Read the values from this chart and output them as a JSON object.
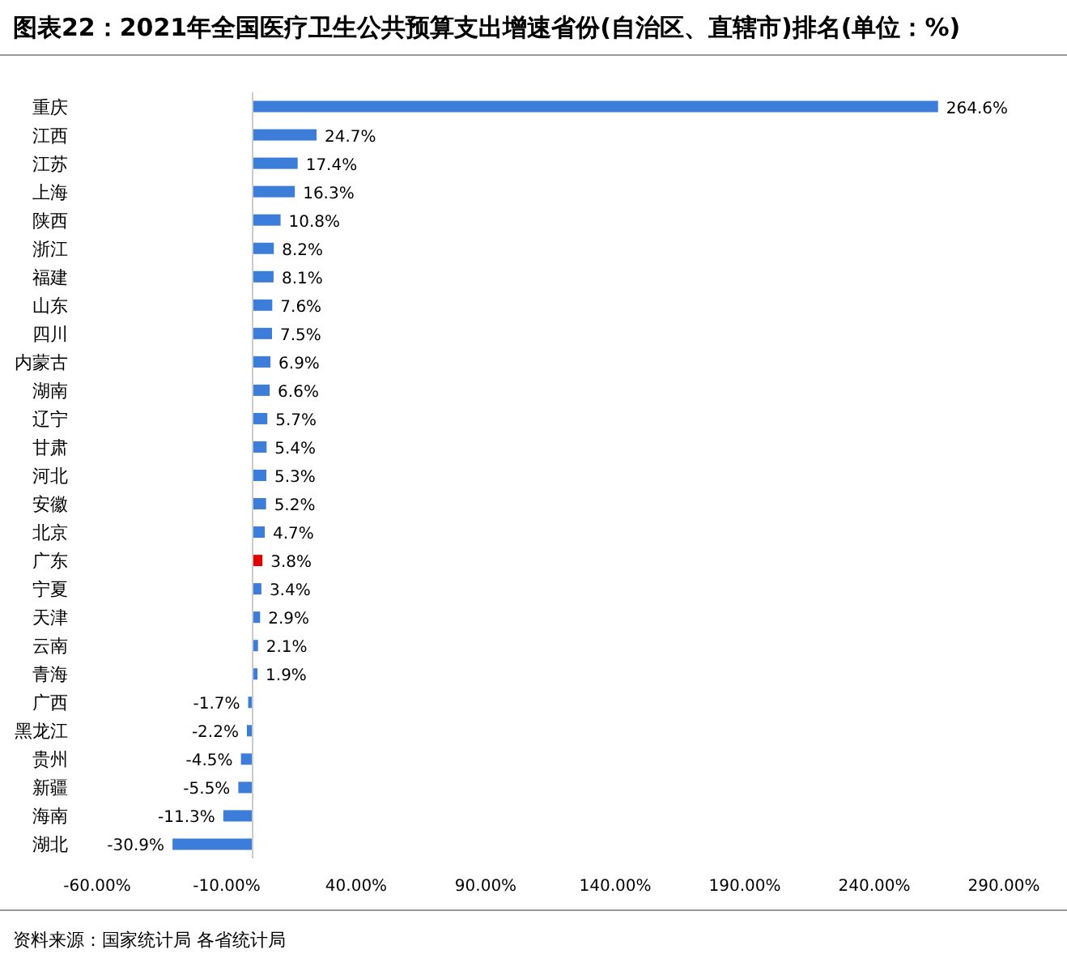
{
  "chart_data": {
    "type": "bar",
    "orientation": "horizontal",
    "title": "图表22：2021年全国医疗卫生公共预算支出增速省份(自治区、直辖市)排名(单位：%)",
    "categories": [
      "重庆",
      "江西",
      "江苏",
      "上海",
      "陕西",
      "浙江",
      "福建",
      "山东",
      "四川",
      "内蒙古",
      "湖南",
      "辽宁",
      "甘肃",
      "河北",
      "安徽",
      "北京",
      "广东",
      "宁夏",
      "天津",
      "云南",
      "青海",
      "广西",
      "黑龙江",
      "贵州",
      "新疆",
      "海南",
      "湖北"
    ],
    "values": [
      264.6,
      24.7,
      17.4,
      16.3,
      10.8,
      8.2,
      8.1,
      7.6,
      7.5,
      6.9,
      6.6,
      5.7,
      5.4,
      5.3,
      5.2,
      4.7,
      3.8,
      3.4,
      2.9,
      2.1,
      1.9,
      -1.7,
      -2.2,
      -4.5,
      -5.5,
      -11.3,
      -30.9
    ],
    "value_labels": [
      "264.6%",
      "24.7%",
      "17.4%",
      "16.3%",
      "10.8%",
      "8.2%",
      "8.1%",
      "7.6%",
      "7.5%",
      "6.9%",
      "6.6%",
      "5.7%",
      "5.4%",
      "5.3%",
      "5.2%",
      "4.7%",
      "3.8%",
      "3.4%",
      "2.9%",
      "2.1%",
      "1.9%",
      "-1.7%",
      "-2.2%",
      "-4.5%",
      "-5.5%",
      "-11.3%",
      "-30.9%"
    ],
    "colors": [
      "#3b7dd8",
      "#3b7dd8",
      "#3b7dd8",
      "#3b7dd8",
      "#3b7dd8",
      "#3b7dd8",
      "#3b7dd8",
      "#3b7dd8",
      "#3b7dd8",
      "#3b7dd8",
      "#3b7dd8",
      "#3b7dd8",
      "#3b7dd8",
      "#3b7dd8",
      "#3b7dd8",
      "#3b7dd8",
      "#e00000",
      "#3b7dd8",
      "#3b7dd8",
      "#3b7dd8",
      "#3b7dd8",
      "#3b7dd8",
      "#3b7dd8",
      "#3b7dd8",
      "#3b7dd8",
      "#3b7dd8",
      "#3b7dd8"
    ],
    "xlim": [
      -60,
      290
    ],
    "xticks": [
      {
        "value": -60,
        "label": "-60.00%"
      },
      {
        "value": -10,
        "label": "-10.00%"
      },
      {
        "value": 40,
        "label": "40.00%"
      },
      {
        "value": 90,
        "label": "90.00%"
      },
      {
        "value": 140,
        "label": "140.00%"
      },
      {
        "value": 190,
        "label": "190.00%"
      },
      {
        "value": 240,
        "label": "240.00%"
      },
      {
        "value": 290,
        "label": "290.00%"
      }
    ],
    "annotations": [
      "资料来源：国家统计局 各省统计局"
    ]
  }
}
